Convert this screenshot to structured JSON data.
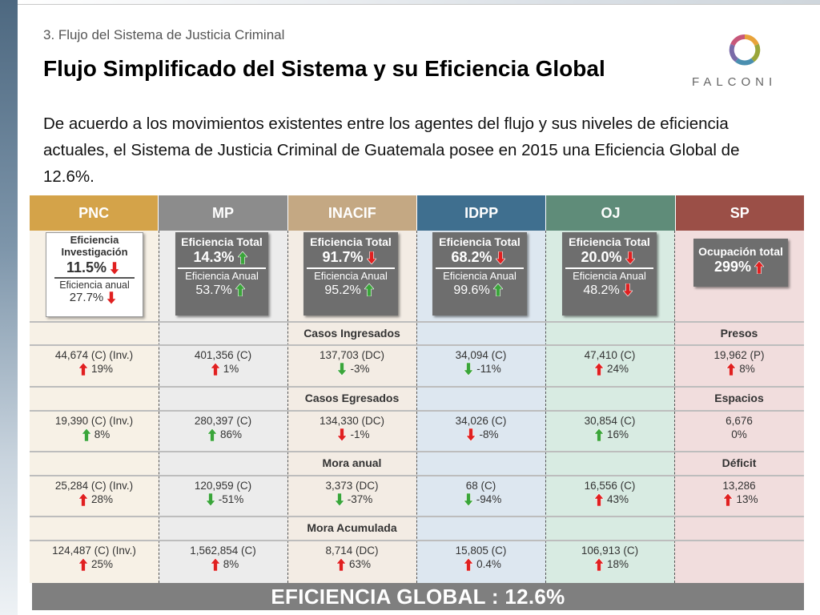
{
  "subtitle": "3. Flujo del Sistema de Justicia Criminal",
  "title": "Flujo Simplificado del Sistema y su Eficiencia Global",
  "logo_text": "FALCONI",
  "intro": "De acuerdo a los movimientos existentes entre los agentes del flujo y sus niveles de eficiencia actuales, el Sistema de Justicia Criminal de Guatemala posee en 2015 una Eficiencia Global de 12.6%.",
  "colors": {
    "pnc": "#d4a349",
    "mp": "#8c8c8c",
    "inacif": "#c4a883",
    "idpp": "#3f6f8f",
    "oj": "#5f8c79",
    "sp": "#9b4f47",
    "arrow_up_red": "#e02020",
    "arrow_down_red": "#e02020",
    "arrow_up_green": "#3aa53a",
    "arrow_down_green": "#3aa53a"
  },
  "columns": [
    "PNC",
    "MP",
    "INACIF",
    "IDPP",
    "OJ",
    "SP"
  ],
  "efficiency": {
    "pnc": {
      "label1": "Eficiencia",
      "label2": "Investigación",
      "value1": "11.5%",
      "arrow1": "down-red",
      "label3": "Eficiencia anual",
      "value2": "27.7%",
      "arrow2": "down-red"
    },
    "mp": {
      "label1": "Eficiencia Total",
      "value1": "14.3%",
      "arrow1": "up-green",
      "label2": "Eficiencia Anual",
      "value2": "53.7%",
      "arrow2": "up-green"
    },
    "inacif": {
      "label1": "Eficiencia Total",
      "value1": "91.7%",
      "arrow1": "down-red",
      "label2": "Eficiencia Anual",
      "value2": "95.2%",
      "arrow2": "up-green"
    },
    "idpp": {
      "label1": "Eficiencia Total",
      "value1": "68.2%",
      "arrow1": "down-red",
      "label2": "Eficiencia Anual",
      "value2": "99.6%",
      "arrow2": "up-green"
    },
    "oj": {
      "label1": "Eficiencia Total",
      "value1": "20.0%",
      "arrow1": "down-red",
      "label2": "Eficiencia Anual",
      "value2": "48.2%",
      "arrow2": "down-red"
    },
    "sp": {
      "label1": "Ocupación total",
      "value1": "299%",
      "arrow1": "up-red"
    }
  },
  "sections": [
    {
      "title": "Casos Ingresados",
      "sp_title": "Presos",
      "cells": [
        {
          "value": "44,674 (C) (Inv.)",
          "arrow": "up-red",
          "pct": "19%"
        },
        {
          "value": "401,356 (C)",
          "arrow": "up-red",
          "pct": "1%"
        },
        {
          "value": "137,703 (DC)",
          "arrow": "down-green",
          "pct": "-3%"
        },
        {
          "value": "34,094 (C)",
          "arrow": "down-green",
          "pct": "-11%"
        },
        {
          "value": "47,410 (C)",
          "arrow": "up-red",
          "pct": "24%"
        },
        {
          "value": "19,962 (P)",
          "arrow": "up-red",
          "pct": "8%"
        }
      ]
    },
    {
      "title": "Casos Egresados",
      "sp_title": "Espacios",
      "cells": [
        {
          "value": "19,390 (C) (Inv.)",
          "arrow": "up-green",
          "pct": "8%"
        },
        {
          "value": "280,397 (C)",
          "arrow": "up-green",
          "pct": "86%"
        },
        {
          "value": "134,330 (DC)",
          "arrow": "down-red",
          "pct": "-1%"
        },
        {
          "value": "34,026 (C)",
          "arrow": "down-red",
          "pct": "-8%"
        },
        {
          "value": "30,854 (C)",
          "arrow": "up-green",
          "pct": "16%"
        },
        {
          "value": "6,676",
          "arrow": "",
          "pct": "0%"
        }
      ]
    },
    {
      "title": "Mora anual",
      "sp_title": "Déficit",
      "cells": [
        {
          "value": "25,284 (C) (Inv.)",
          "arrow": "up-red",
          "pct": "28%"
        },
        {
          "value": "120,959 (C)",
          "arrow": "down-green",
          "pct": "-51%"
        },
        {
          "value": "3,373 (DC)",
          "arrow": "down-green",
          "pct": "-37%"
        },
        {
          "value": "68 (C)",
          "arrow": "down-green",
          "pct": "-94%"
        },
        {
          "value": "16,556 (C)",
          "arrow": "up-red",
          "pct": "43%"
        },
        {
          "value": "13,286",
          "arrow": "up-red",
          "pct": "13%"
        }
      ]
    },
    {
      "title": "Mora Acumulada",
      "sp_title": "",
      "cells": [
        {
          "value": "124,487 (C) (Inv.)",
          "arrow": "up-red",
          "pct": "25%"
        },
        {
          "value": "1,562,854 (C)",
          "arrow": "up-red",
          "pct": "8%"
        },
        {
          "value": "8,714 (DC)",
          "arrow": "up-red",
          "pct": "63%"
        },
        {
          "value": "15,805 (C)",
          "arrow": "up-red",
          "pct": "0.4%"
        },
        {
          "value": "106,913 (C)",
          "arrow": "up-red",
          "pct": "18%"
        },
        {
          "value": "",
          "arrow": "",
          "pct": ""
        }
      ]
    }
  ],
  "footer": "EFICIENCIA GLOBAL : 12.6%"
}
